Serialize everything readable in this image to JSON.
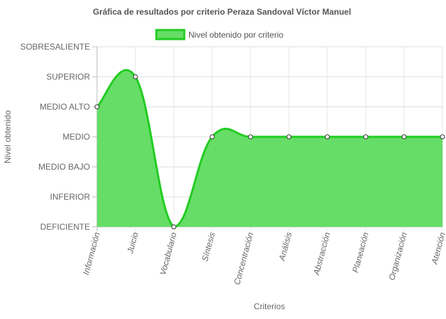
{
  "chart_data": {
    "type": "area",
    "title": "Gráfica de resultados por criterio Peraza Sandoval Víctor Manuel",
    "xlabel": "Criterios",
    "ylabel": "Nivel obtenido",
    "categories": [
      "Información",
      "Juicio",
      "Vocabulario",
      "Síntesis",
      "Concentración",
      "Análisis",
      "Abstracción",
      "Planeación",
      "Organización",
      "Atención"
    ],
    "y_levels": [
      "DEFICIENTE",
      "INFERIOR",
      "MEDIO BAJO",
      "MEDIO",
      "MEDIO ALTO",
      "SUPERIOR",
      "SOBRESALIENTE"
    ],
    "ylim": [
      0,
      6
    ],
    "grid": true,
    "legend_position": "top",
    "series": [
      {
        "name": "Nivel obtenido por criterio",
        "values": [
          4,
          5,
          0,
          3,
          3,
          3,
          3,
          3,
          3,
          3
        ],
        "fill_color": "#66dd66",
        "line_color": "#22cc22"
      }
    ]
  }
}
